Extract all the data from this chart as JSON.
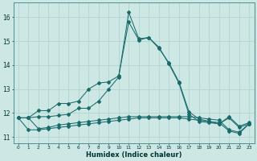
{
  "xlabel": "Humidex (Indice chaleur)",
  "background_color": "#cde8e4",
  "grid_color": "#b0d4d0",
  "line_color": "#1a6b6b",
  "x": [
    0,
    1,
    2,
    3,
    4,
    5,
    6,
    7,
    8,
    9,
    10,
    11,
    12,
    13,
    14,
    15,
    16,
    17,
    18,
    19,
    20,
    21,
    22,
    23
  ],
  "line_peak": [
    11.8,
    11.8,
    11.85,
    11.85,
    11.9,
    11.95,
    12.2,
    12.2,
    12.5,
    13.0,
    13.5,
    16.2,
    15.1,
    15.15,
    14.7,
    14.1,
    13.3,
    12.05,
    11.75,
    11.65,
    11.55,
    11.85,
    11.45,
    11.6
  ],
  "line_mid": [
    11.8,
    11.8,
    12.1,
    12.1,
    12.4,
    12.4,
    12.5,
    13.0,
    13.25,
    13.3,
    13.55,
    15.8,
    15.05,
    15.15,
    14.75,
    14.05,
    13.25,
    11.95,
    11.65,
    11.6,
    11.55,
    11.8,
    11.4,
    11.55
  ],
  "line_low1": [
    11.8,
    11.8,
    11.35,
    11.4,
    11.5,
    11.55,
    11.6,
    11.65,
    11.7,
    11.75,
    11.8,
    11.85,
    11.85,
    11.85,
    11.85,
    11.85,
    11.85,
    11.85,
    11.8,
    11.75,
    11.7,
    11.3,
    11.2,
    11.55
  ],
  "line_low2": [
    11.8,
    11.3,
    11.3,
    11.35,
    11.4,
    11.45,
    11.5,
    11.55,
    11.6,
    11.65,
    11.7,
    11.75,
    11.8,
    11.8,
    11.8,
    11.8,
    11.8,
    11.75,
    11.7,
    11.65,
    11.6,
    11.25,
    11.15,
    11.55
  ],
  "ylim": [
    10.75,
    16.6
  ],
  "yticks": [
    11,
    12,
    13,
    14,
    15,
    16
  ],
  "xticks": [
    0,
    1,
    2,
    3,
    4,
    5,
    6,
    7,
    8,
    9,
    10,
    11,
    12,
    13,
    14,
    15,
    16,
    17,
    18,
    19,
    20,
    21,
    22,
    23
  ],
  "xlim": [
    -0.5,
    23.5
  ]
}
